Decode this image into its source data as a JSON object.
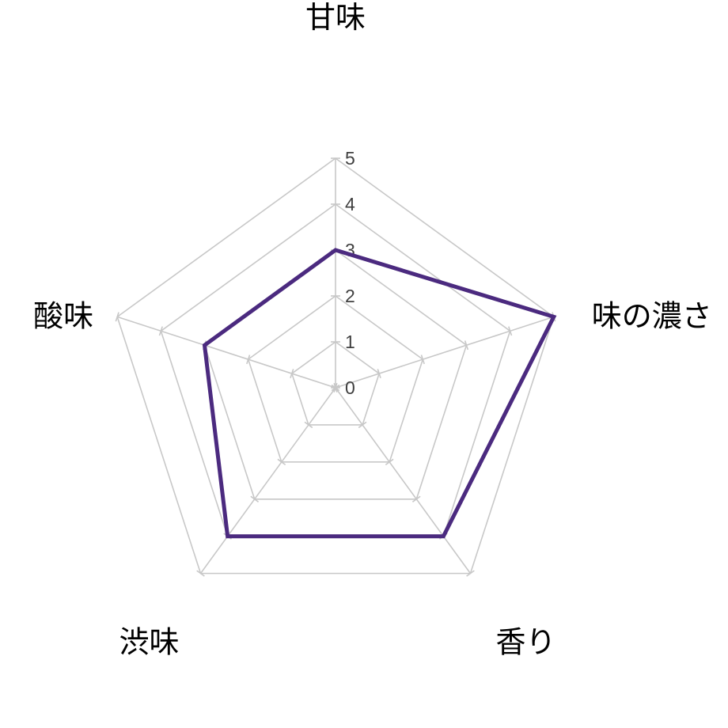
{
  "chart_data": {
    "type": "radar",
    "categories": [
      "甘味",
      "味の濃さ",
      "香り",
      "渋味",
      "酸味"
    ],
    "series": [
      {
        "values": [
          3,
          5,
          4,
          4,
          3
        ]
      }
    ],
    "rlim": [
      0,
      5
    ],
    "ticks": [
      "0",
      "1",
      "2",
      "3",
      "4",
      "5"
    ],
    "grid": true,
    "legend": "none"
  },
  "colors": {
    "series": "#4b2a7f",
    "grid": "#c8c8c8",
    "tick_text": "#404040",
    "label_text": "#000000"
  }
}
